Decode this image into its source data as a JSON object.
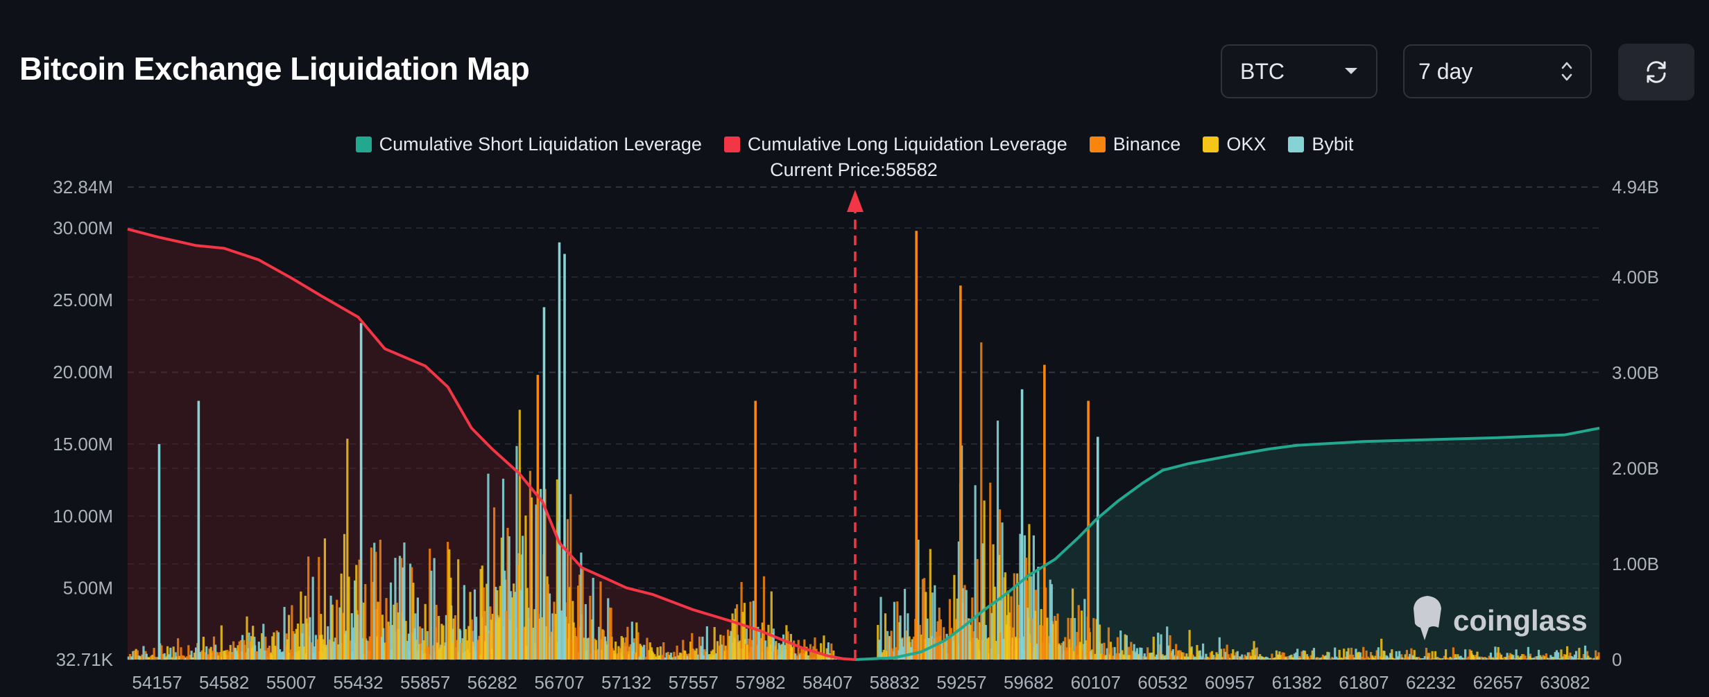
{
  "header": {
    "title": "Bitcoin Exchange Liquidation Map",
    "coin_select": "BTC",
    "range_select": "7 day"
  },
  "colors": {
    "short": "#22a88f",
    "long": "#f23645",
    "binance": "#f7850e",
    "okx": "#f5c518",
    "bybit": "#85d3d4",
    "background": "#0f1118",
    "grid": "#3a3f4b"
  },
  "icons": {
    "coin_dropdown": "caret-down-icon",
    "range_dropdown": "chevron-updown-icon",
    "refresh": "refresh-icon",
    "watermark": "coinglass-logo-icon"
  },
  "watermark": "coinglass",
  "chart_data": {
    "type": "bar",
    "title": "Bitcoin Exchange Liquidation Map",
    "current_price_label": "Current Price:58582",
    "current_price": 58582,
    "x_range": [
      53970,
      63300
    ],
    "x_ticks": [
      "54157",
      "54582",
      "55007",
      "55432",
      "55857",
      "56282",
      "56707",
      "57132",
      "57557",
      "57982",
      "58407",
      "58832",
      "59257",
      "59682",
      "60107",
      "60532",
      "60957",
      "61382",
      "61807",
      "62232",
      "62657",
      "63082"
    ],
    "y_left": {
      "min": 32710,
      "max": 32840000,
      "ticks": [
        {
          "value": 32840000,
          "label": "32.84M"
        },
        {
          "value": 30000000,
          "label": "30.00M"
        },
        {
          "value": 25000000,
          "label": "25.00M"
        },
        {
          "value": 20000000,
          "label": "20.00M"
        },
        {
          "value": 15000000,
          "label": "15.00M"
        },
        {
          "value": 10000000,
          "label": "10.00M"
        },
        {
          "value": 5000000,
          "label": "5.00M"
        },
        {
          "value": 32710,
          "label": "32.71K"
        }
      ]
    },
    "y_right": {
      "min": 0,
      "max": 4940000000,
      "ticks": [
        {
          "value": 4940000000,
          "label": "4.94B"
        },
        {
          "value": 4000000000,
          "label": "4.00B"
        },
        {
          "value": 3000000000,
          "label": "3.00B"
        },
        {
          "value": 2000000000,
          "label": "2.00B"
        },
        {
          "value": 1000000000,
          "label": "1.00B"
        },
        {
          "value": 0,
          "label": "0"
        }
      ]
    },
    "legend": [
      {
        "key": "short",
        "label": "Cumulative Short Liquidation Leverage"
      },
      {
        "key": "long",
        "label": "Cumulative Long Liquidation Leverage"
      },
      {
        "key": "binance",
        "label": "Binance"
      },
      {
        "key": "okx",
        "label": "OKX"
      },
      {
        "key": "bybit",
        "label": "Bybit"
      }
    ],
    "series": [
      {
        "name": "Cumulative Long Liquidation Leverage",
        "axis": "right",
        "x": [
          53970,
          54157,
          54400,
          54582,
          54800,
          55007,
          55200,
          55432,
          55600,
          55857,
          56000,
          56150,
          56282,
          56450,
          56600,
          56707,
          56850,
          57000,
          57132,
          57300,
          57557,
          57800,
          57982,
          58100,
          58250,
          58407,
          58500,
          58582
        ],
        "values": [
          4500000000.0,
          4420000000.0,
          4330000000.0,
          4300000000.0,
          4180000000.0,
          3990000000.0,
          3800000000.0,
          3580000000.0,
          3250000000.0,
          3070000000.0,
          2850000000.0,
          2420000000.0,
          2200000000.0,
          1950000000.0,
          1650000000.0,
          1220000000.0,
          960000000.0,
          850000000.0,
          750000000.0,
          680000000.0,
          520000000.0,
          400000000.0,
          300000000.0,
          220000000.0,
          120000000.0,
          40000000.0,
          10000000.0,
          0
        ]
      },
      {
        "name": "Cumulative Short Liquidation Leverage",
        "axis": "right",
        "x": [
          58582,
          58832,
          59000,
          59150,
          59257,
          59400,
          59550,
          59682,
          59850,
          60000,
          60107,
          60250,
          60400,
          60532,
          60700,
          60957,
          61200,
          61382,
          61807,
          62232,
          62657,
          63082,
          63300
        ],
        "values": [
          0,
          20000000.0,
          80000000.0,
          200000000.0,
          330000000.0,
          520000000.0,
          700000000.0,
          880000000.0,
          1050000000.0,
          1280000000.0,
          1460000000.0,
          1660000000.0,
          1840000000.0,
          1980000000.0,
          2050000000.0,
          2130000000.0,
          2200000000.0,
          2240000000.0,
          2280000000.0,
          2300000000.0,
          2320000000.0,
          2350000000.0,
          2420000000.0
        ]
      }
    ],
    "notable_bars": [
      {
        "exchange": "bybit",
        "x": 54170,
        "value": 15000000
      },
      {
        "exchange": "bybit",
        "x": 54420,
        "value": 18000000
      },
      {
        "exchange": "bybit",
        "x": 55450,
        "value": 23400000
      },
      {
        "exchange": "bybit",
        "x": 56707,
        "value": 29000000
      },
      {
        "exchange": "bybit",
        "x": 56740,
        "value": 28200000
      },
      {
        "exchange": "bybit",
        "x": 56610,
        "value": 24500000
      },
      {
        "exchange": "binance",
        "x": 56570,
        "value": 19800000
      },
      {
        "exchange": "binance",
        "x": 57950,
        "value": 18000000
      },
      {
        "exchange": "binance",
        "x": 58970,
        "value": 29800000
      },
      {
        "exchange": "binance",
        "x": 59250,
        "value": 26000000
      },
      {
        "exchange": "binance",
        "x": 59782,
        "value": 20500000
      },
      {
        "exchange": "bybit",
        "x": 59640,
        "value": 18800000
      },
      {
        "exchange": "binance",
        "x": 60060,
        "value": 18000000
      },
      {
        "exchange": "bybit",
        "x": 60120,
        "value": 15500000
      }
    ]
  }
}
